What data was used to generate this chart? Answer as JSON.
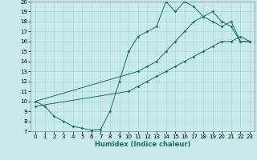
{
  "bg_color": "#c8eaea",
  "line_color": "#1a6b6b",
  "grid_color": "#a8d0d0",
  "xlabel": "Humidex (Indice chaleur)",
  "xlim": [
    -0.5,
    23.5
  ],
  "ylim": [
    7,
    20
  ],
  "xticks": [
    0,
    1,
    2,
    3,
    4,
    5,
    6,
    7,
    8,
    9,
    10,
    11,
    12,
    13,
    14,
    15,
    16,
    17,
    18,
    19,
    20,
    21,
    22,
    23
  ],
  "yticks": [
    7,
    8,
    9,
    10,
    11,
    12,
    13,
    14,
    15,
    16,
    17,
    18,
    19,
    20
  ],
  "series1_x": [
    0,
    1,
    2,
    3,
    4,
    5,
    6,
    7,
    8,
    9,
    10,
    11,
    12,
    13,
    14,
    15,
    16,
    17,
    18,
    19,
    20,
    21,
    22,
    23
  ],
  "series1_y": [
    10,
    9.5,
    8.5,
    8,
    7.5,
    7.3,
    7.1,
    7.2,
    9,
    12,
    15,
    16.5,
    17,
    17.5,
    20,
    19,
    20,
    19.5,
    18.5,
    19,
    18,
    17.5,
    16,
    16
  ],
  "series2_x": [
    0,
    11,
    12,
    13,
    14,
    15,
    16,
    17,
    18,
    19,
    20,
    21,
    22,
    23
  ],
  "series2_y": [
    10,
    13,
    13.5,
    14,
    15,
    16,
    17,
    18,
    18.5,
    18,
    17.5,
    18,
    16,
    16
  ],
  "series3_x": [
    0,
    10,
    11,
    12,
    13,
    14,
    15,
    16,
    17,
    18,
    19,
    20,
    21,
    22,
    23
  ],
  "series3_y": [
    9.5,
    11,
    11.5,
    12,
    12.5,
    13,
    13.5,
    14,
    14.5,
    15,
    15.5,
    16,
    16,
    16.5,
    16
  ]
}
